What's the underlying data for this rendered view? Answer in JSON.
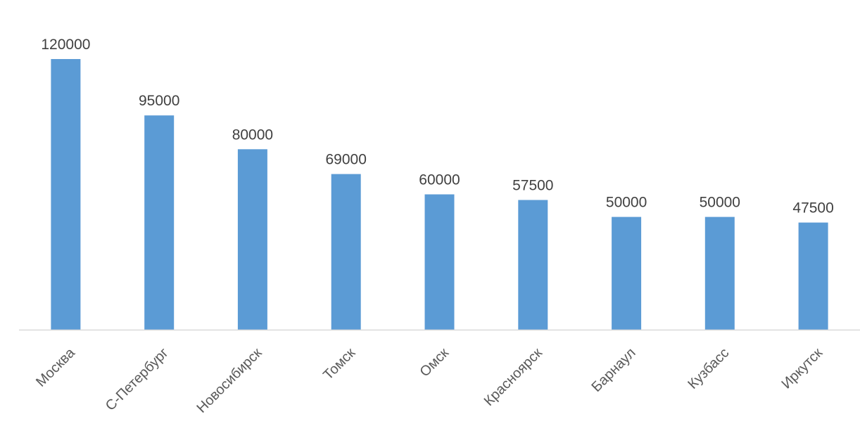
{
  "chart_data": {
    "type": "bar",
    "categories": [
      "Москва",
      "С-Петербург",
      "Новосибирск",
      "Томск",
      "Омск",
      "Красноярск",
      "Барнаул",
      "Кузбасс",
      "Иркутск"
    ],
    "values": [
      120000,
      95000,
      80000,
      69000,
      60000,
      57500,
      50000,
      50000,
      47500
    ],
    "data_labels": [
      "120000",
      "95000",
      "80000",
      "69000",
      "60000",
      "57500",
      "50000",
      "50000",
      "47500"
    ],
    "title": "",
    "xlabel": "",
    "ylabel": "",
    "ylim": [
      0,
      120000
    ],
    "grid": false,
    "legend": "none",
    "colors": {
      "bar": "#5b9bd5",
      "axis": "#d9d9d9",
      "value_text": "#404040",
      "category_text": "#595959"
    }
  }
}
